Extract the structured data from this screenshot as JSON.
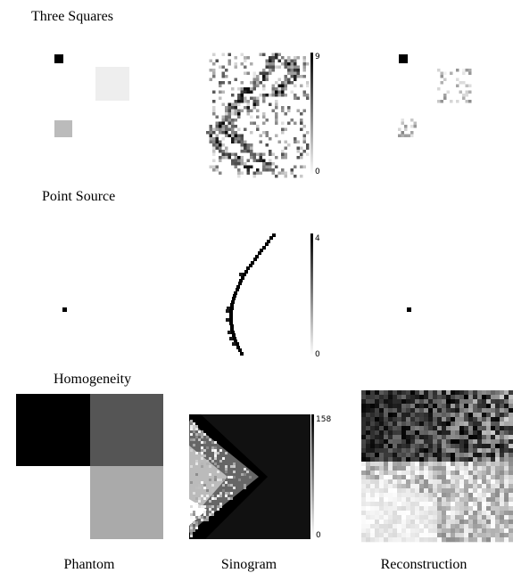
{
  "panels": [
    {
      "title": "Three Squares",
      "colorbar": {
        "max": 9,
        "min": 0
      }
    },
    {
      "title": "Point Source",
      "colorbar": {
        "max": 4,
        "min": 0
      }
    },
    {
      "title": "Homogeneity",
      "colorbar": {
        "max": 158,
        "min": 0
      }
    }
  ],
  "captions": [
    "Phantom",
    "Sinogram",
    "Reconstruction"
  ]
}
